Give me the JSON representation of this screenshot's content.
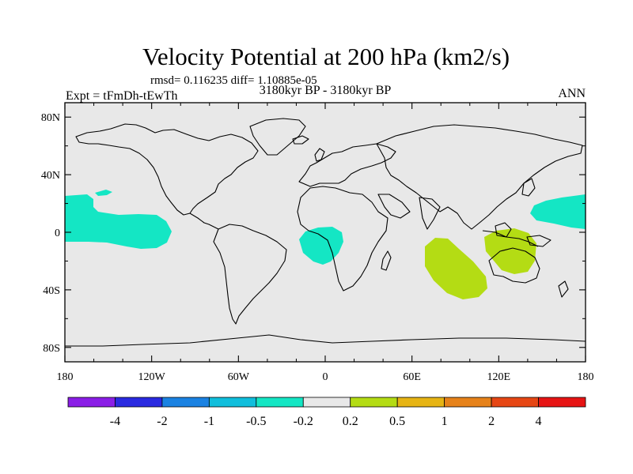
{
  "chart_data": {
    "type": "heatmap",
    "title": "Velocity Potential at 200 hPa (km2/s)",
    "stats_label": "rmsd= 0.116235 diff= 1.10885e-05",
    "experiment_label": "Expt = tFmDh-tEwTh",
    "period_label": "3180kyr BP - 3180kyr BP",
    "season_label": "ANN",
    "lon_range": [
      -180,
      180
    ],
    "lat_range": [
      -90,
      90
    ],
    "x_ticks": [
      {
        "value": -180,
        "label": "180"
      },
      {
        "value": -120,
        "label": "120W"
      },
      {
        "value": -60,
        "label": "60W"
      },
      {
        "value": 0,
        "label": "0"
      },
      {
        "value": 60,
        "label": "60E"
      },
      {
        "value": 120,
        "label": "120E"
      },
      {
        "value": 180,
        "label": "180"
      }
    ],
    "y_ticks": [
      {
        "value": 80,
        "label": "80N"
      },
      {
        "value": 40,
        "label": "40N"
      },
      {
        "value": 0,
        "label": "0"
      },
      {
        "value": -40,
        "label": "40S"
      },
      {
        "value": -80,
        "label": "80S"
      }
    ],
    "colorbar": {
      "levels": [
        "-4",
        "-2",
        "-1",
        "-0.5",
        "-0.2",
        "0.2",
        "0.5",
        "1",
        "2",
        "4"
      ],
      "colors": [
        "#8a1ee6",
        "#2a2ae0",
        "#1a82e2",
        "#10bedc",
        "#14e6c4",
        "#e8e8e8",
        "#b4dc14",
        "#e6b414",
        "#e6821a",
        "#e64614",
        "#e61414"
      ]
    },
    "regions": [
      {
        "name": "North Pacific negative anomaly",
        "value_bin": "-0.5 to -0.2",
        "color": "#14e6c4"
      },
      {
        "name": "Northwest Pacific negative anomaly",
        "value_bin": "-0.5 to -0.2",
        "color": "#14e6c4"
      },
      {
        "name": "South Atlantic negative anomaly",
        "value_bin": "-0.5 to -0.2",
        "color": "#14e6c4"
      },
      {
        "name": "Indian Ocean positive anomaly",
        "value_bin": "0.2 to 0.5",
        "color": "#b4dc14"
      },
      {
        "name": "Maritime Continent positive anomaly",
        "value_bin": "0.2 to 0.5",
        "color": "#b4dc14"
      }
    ]
  }
}
